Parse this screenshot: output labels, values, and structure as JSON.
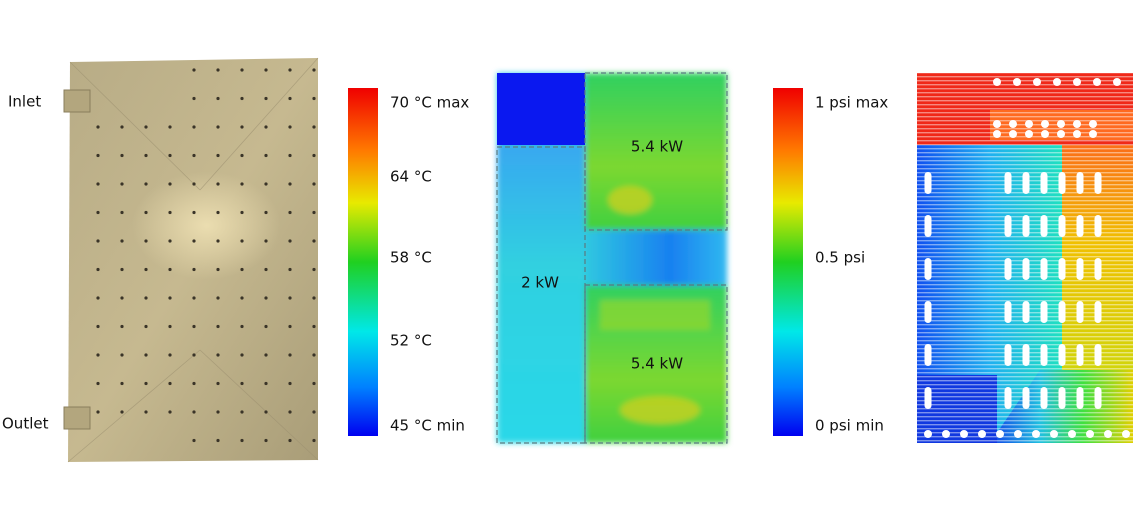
{
  "photo": {
    "inlet": "Inlet",
    "outlet": "Outlet"
  },
  "temperature_scale": [
    "70 °C max",
    "64 °C",
    "58 °C",
    "52 °C",
    "45 °C min"
  ],
  "heat_loads": [
    "5.4 kW",
    "2 kW",
    "5.4 kW"
  ],
  "pressure_scale": [
    "1 psi max",
    "0.5 psi",
    "0 psi min"
  ]
}
